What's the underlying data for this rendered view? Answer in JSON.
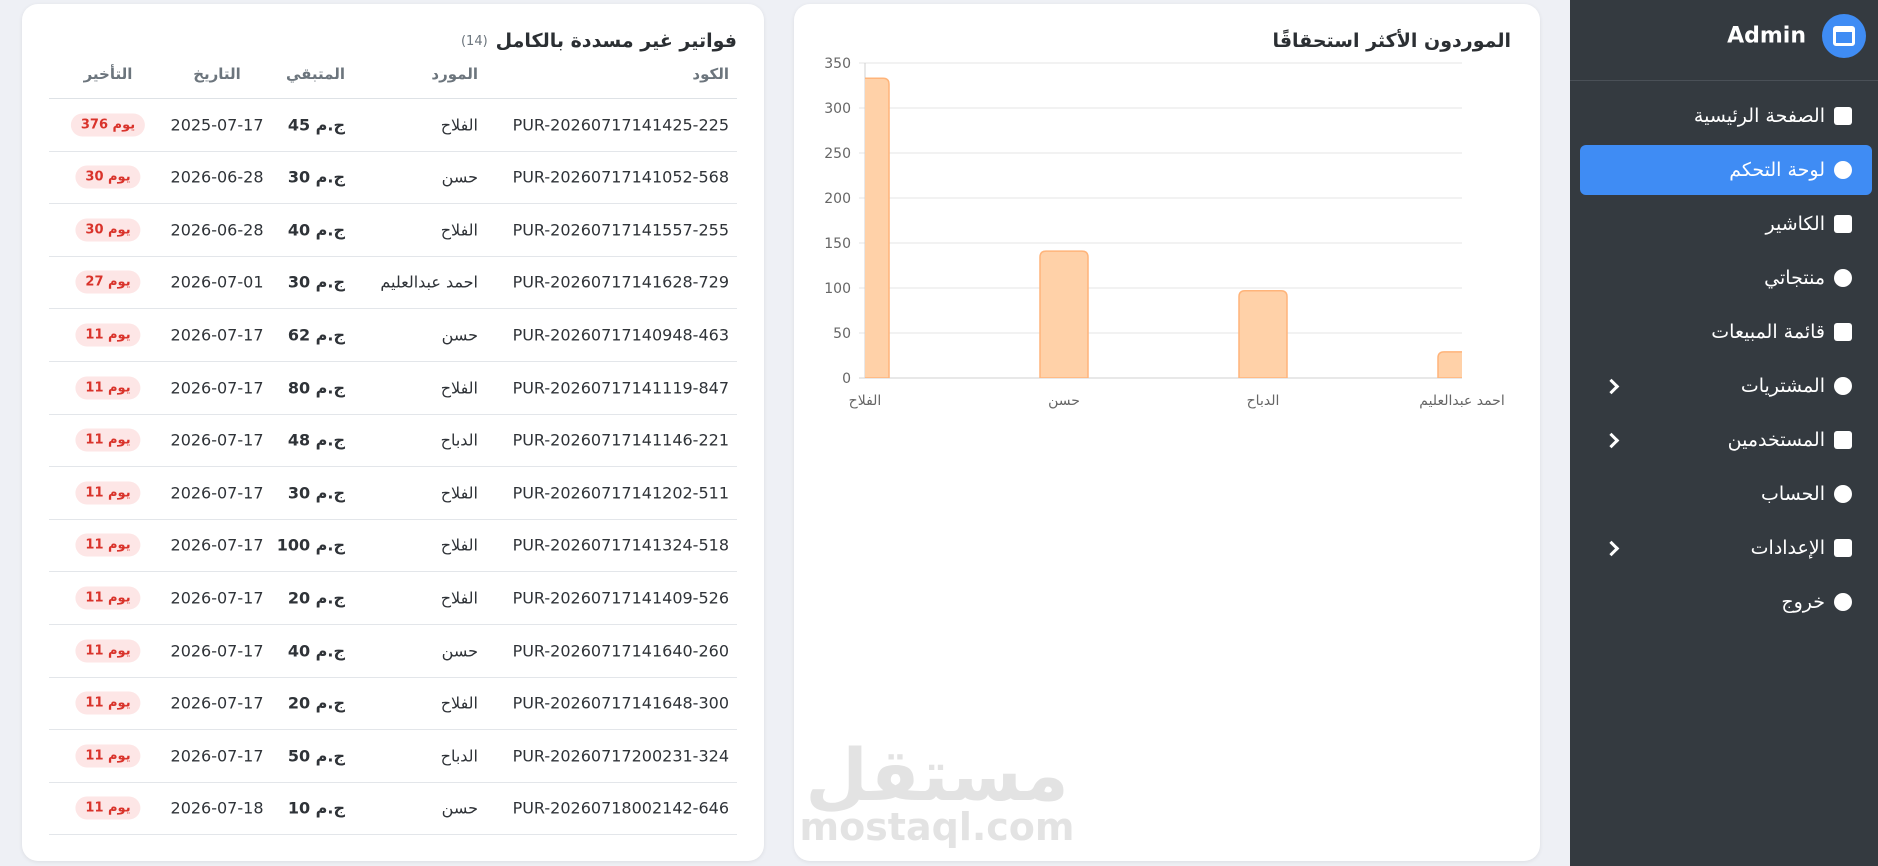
{
  "sidebar": {
    "brand": "Admin",
    "active": 1,
    "items": [
      {
        "label": "الصفحة الرئيسية",
        "submenu": false
      },
      {
        "label": "لوحة التحكم",
        "submenu": false
      },
      {
        "label": "الكاشير",
        "submenu": false
      },
      {
        "label": "منتجاتي",
        "submenu": false
      },
      {
        "label": "قائمة المبيعات",
        "submenu": false
      },
      {
        "label": "المشتريات",
        "submenu": true
      },
      {
        "label": "المستخدمين",
        "submenu": true
      },
      {
        "label": "الحساب",
        "submenu": false
      },
      {
        "label": "الإعدادات",
        "submenu": true
      },
      {
        "label": "خروج",
        "submenu": false
      }
    ]
  },
  "chart_data": {
    "type": "bar",
    "title": "الموردون الأكثر استحقاقًا",
    "categories": [
      "الفلاح",
      "حسن",
      "الدباح",
      "احمد عبدالعليم"
    ],
    "values": [
      333,
      141,
      97,
      29
    ],
    "color": "#ffd1a8",
    "border_color": "#ffb47a",
    "ylim": [
      0,
      350
    ],
    "yticks": [
      0,
      50,
      100,
      150,
      200,
      250,
      300,
      350
    ],
    "grid": true
  },
  "watermark": {
    "logo": "مستقل",
    "url": "mostaql.com"
  },
  "table": {
    "title": "فواتير غير مسددة بالكامل",
    "count": "(14)",
    "columns": [
      "الكود",
      "المورد",
      "المتبقي",
      "التاريخ",
      "التأخير"
    ],
    "rows": [
      [
        "PUR-20260717141425-225",
        "الفلاح",
        "45 ج.م",
        "2025-07-17",
        "376 يوم"
      ],
      [
        "PUR-20260717141052-568",
        "حسن",
        "30 ج.م",
        "2026-06-28",
        "30 يوم"
      ],
      [
        "PUR-20260717141557-255",
        "الفلاح",
        "40 ج.م",
        "2026-06-28",
        "30 يوم"
      ],
      [
        "PUR-20260717141628-729",
        "احمد عبدالعليم",
        "30 ج.م",
        "2026-07-01",
        "27 يوم"
      ],
      [
        "PUR-20260717140948-463",
        "حسن",
        "62 ج.م",
        "2026-07-17",
        "11 يوم"
      ],
      [
        "PUR-20260717141119-847",
        "الفلاح",
        "80 ج.م",
        "2026-07-17",
        "11 يوم"
      ],
      [
        "PUR-20260717141146-221",
        "الدباح",
        "48 ج.م",
        "2026-07-17",
        "11 يوم"
      ],
      [
        "PUR-20260717141202-511",
        "الفلاح",
        "30 ج.م",
        "2026-07-17",
        "11 يوم"
      ],
      [
        "PUR-20260717141324-518",
        "الفلاح",
        "100 ج.م",
        "2026-07-17",
        "11 يوم"
      ],
      [
        "PUR-20260717141409-526",
        "الفلاح",
        "20 ج.م",
        "2026-07-17",
        "11 يوم"
      ],
      [
        "PUR-20260717141640-260",
        "حسن",
        "40 ج.م",
        "2026-07-17",
        "11 يوم"
      ],
      [
        "PUR-20260717141648-300",
        "الفلاح",
        "20 ج.م",
        "2026-07-17",
        "11 يوم"
      ],
      [
        "PUR-20260717200231-324",
        "الدباح",
        "50 ج.م",
        "2026-07-17",
        "11 يوم"
      ],
      [
        "PUR-20260718002142-646",
        "حسن",
        "10 ج.م",
        "2026-07-18",
        "11 يوم"
      ]
    ]
  }
}
